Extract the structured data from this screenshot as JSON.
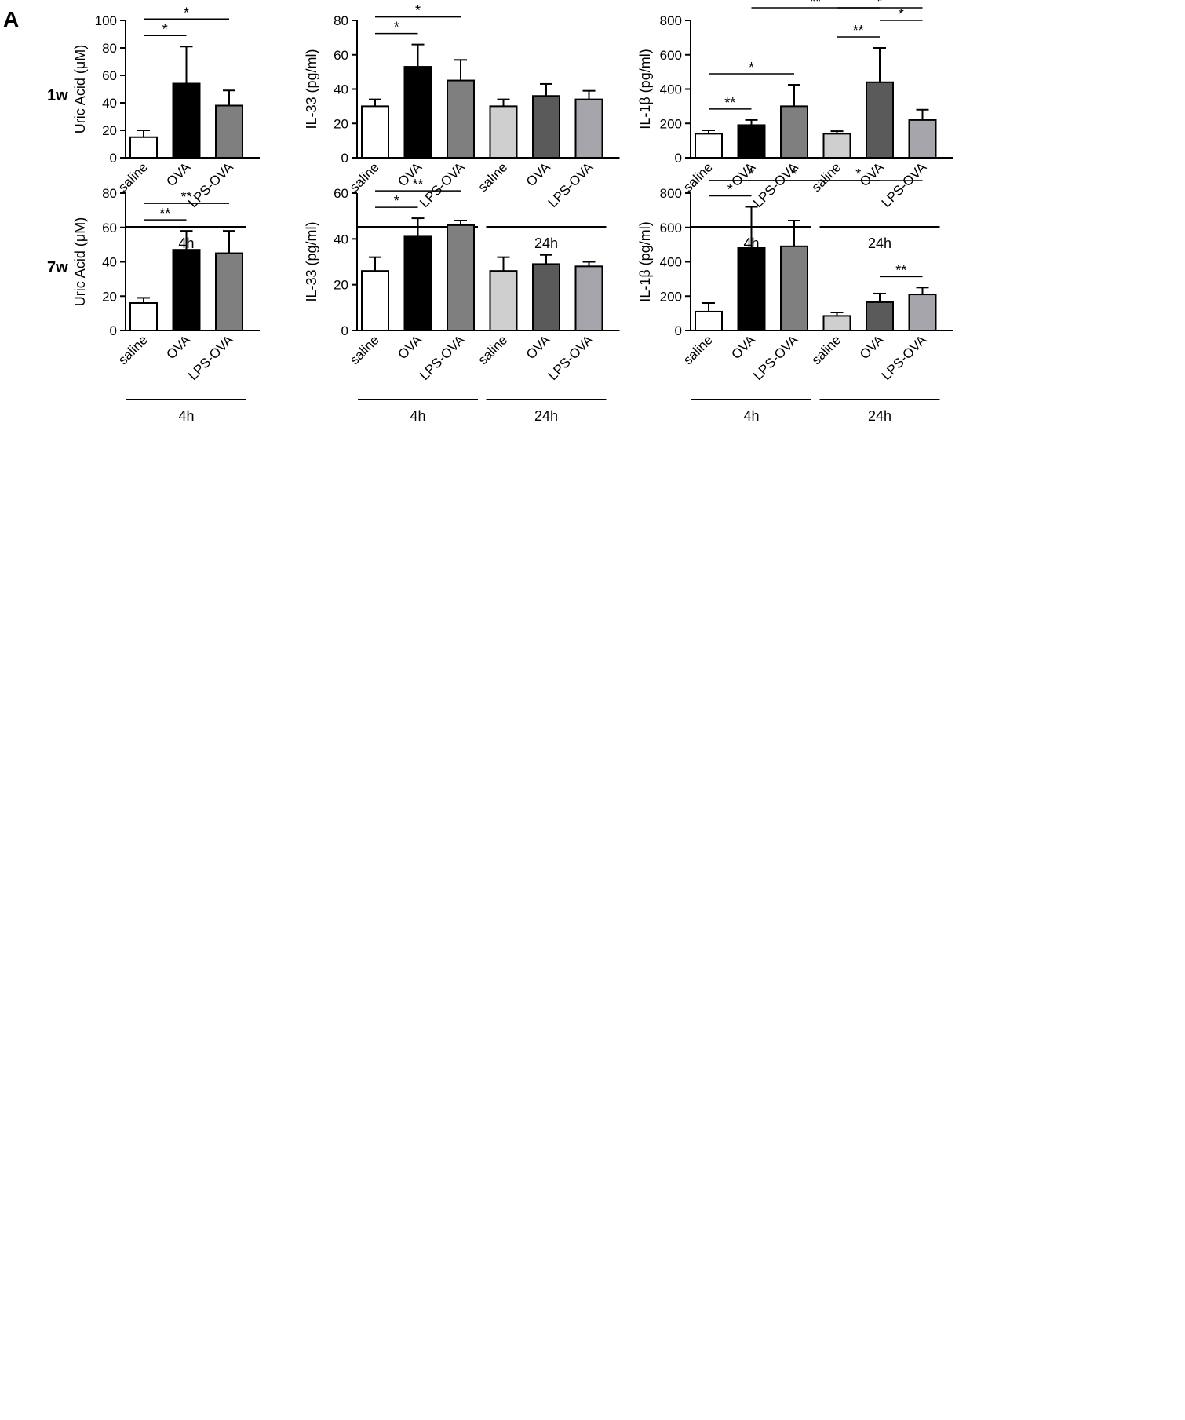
{
  "figure": {
    "panel_letter": "A",
    "row_labels": [
      "1w",
      "7w"
    ]
  },
  "chart_data": [
    {
      "type": "bar",
      "row": 0,
      "col": 0,
      "ylabel": "Uric Acid (μM)",
      "ylim": [
        0,
        100
      ],
      "yticks": [
        0,
        20,
        40,
        60,
        80,
        100
      ],
      "categories": [
        "saline",
        "OVA",
        "LPS-OVA"
      ],
      "groups": [
        {
          "label": "4h",
          "from": 0,
          "to": 2
        }
      ],
      "values": [
        15,
        54,
        38
      ],
      "errors": [
        5,
        27,
        11
      ],
      "colors": [
        "#ffffff",
        "#000000",
        "#7f7f7f"
      ],
      "sig": [
        {
          "a": 0,
          "b": 1,
          "label": "*"
        },
        {
          "a": 0,
          "b": 2,
          "label": "*"
        }
      ]
    },
    {
      "type": "bar",
      "row": 0,
      "col": 1,
      "ylabel": "IL-33 (pg/ml)",
      "ylim": [
        0,
        80
      ],
      "yticks": [
        0,
        20,
        40,
        60,
        80
      ],
      "categories": [
        "saline",
        "OVA",
        "LPS-OVA",
        "saline",
        "OVA",
        "LPS-OVA"
      ],
      "groups": [
        {
          "label": "4h",
          "from": 0,
          "to": 2
        },
        {
          "label": "24h",
          "from": 3,
          "to": 5
        }
      ],
      "values": [
        30,
        53,
        45,
        30,
        36,
        34
      ],
      "errors": [
        4,
        13,
        12,
        4,
        7,
        5
      ],
      "colors": [
        "#ffffff",
        "#000000",
        "#7f7f7f",
        "#cfcfcf",
        "#5a5a5a",
        "#a5a5ab"
      ],
      "sig": [
        {
          "a": 0,
          "b": 1,
          "label": "*"
        },
        {
          "a": 0,
          "b": 2,
          "label": "*"
        }
      ]
    },
    {
      "type": "bar",
      "row": 0,
      "col": 2,
      "ylabel": "IL-1β (pg/ml)",
      "ylim": [
        0,
        800
      ],
      "yticks": [
        0,
        200,
        400,
        600,
        800
      ],
      "categories": [
        "saline",
        "OVA",
        "LPS-OVA",
        "saline",
        "OVA",
        "LPS-OVA"
      ],
      "groups": [
        {
          "label": "4h",
          "from": 0,
          "to": 2
        },
        {
          "label": "24h",
          "from": 3,
          "to": 5
        }
      ],
      "values": [
        140,
        190,
        300,
        140,
        440,
        220
      ],
      "errors": [
        20,
        30,
        125,
        15,
        200,
        60
      ],
      "colors": [
        "#ffffff",
        "#000000",
        "#7f7f7f",
        "#cfcfcf",
        "#5a5a5a",
        "#a5a5ab"
      ],
      "sig": [
        {
          "a": 0,
          "b": 1,
          "label": "**"
        },
        {
          "a": 0,
          "b": 2,
          "label": "*"
        },
        {
          "a": 1,
          "b": 4,
          "label": "**"
        },
        {
          "a": 3,
          "b": 4,
          "label": "**"
        },
        {
          "a": 4,
          "b": 5,
          "label": "*"
        },
        {
          "a": 3,
          "b": 5,
          "label": "*"
        }
      ]
    },
    {
      "type": "bar",
      "row": 1,
      "col": 0,
      "ylabel": "Uric Acid (μM)",
      "ylim": [
        0,
        80
      ],
      "yticks": [
        0,
        20,
        40,
        60,
        80
      ],
      "categories": [
        "saline",
        "OVA",
        "LPS-OVA"
      ],
      "groups": [
        {
          "label": "4h",
          "from": 0,
          "to": 2
        }
      ],
      "values": [
        16,
        47,
        45
      ],
      "errors": [
        3,
        11,
        13
      ],
      "colors": [
        "#ffffff",
        "#000000",
        "#7f7f7f"
      ],
      "sig": [
        {
          "a": 0,
          "b": 1,
          "label": "**"
        },
        {
          "a": 0,
          "b": 2,
          "label": "**"
        }
      ]
    },
    {
      "type": "bar",
      "row": 1,
      "col": 1,
      "ylabel": "IL-33 (pg/ml)",
      "ylim": [
        0,
        60
      ],
      "yticks": [
        0,
        20,
        40,
        60
      ],
      "categories": [
        "saline",
        "OVA",
        "LPS-OVA",
        "saline",
        "OVA",
        "LPS-OVA"
      ],
      "groups": [
        {
          "label": "4h",
          "from": 0,
          "to": 2
        },
        {
          "label": "24h",
          "from": 3,
          "to": 5
        }
      ],
      "values": [
        26,
        41,
        46,
        26,
        29,
        28
      ],
      "errors": [
        6,
        8,
        2,
        6,
        4,
        2
      ],
      "colors": [
        "#ffffff",
        "#000000",
        "#7f7f7f",
        "#cfcfcf",
        "#5a5a5a",
        "#a5a5ab"
      ],
      "sig": [
        {
          "a": 0,
          "b": 1,
          "label": "*"
        },
        {
          "a": 0,
          "b": 2,
          "label": "**"
        }
      ]
    },
    {
      "type": "bar",
      "row": 1,
      "col": 2,
      "ylabel": "IL-1β (pg/ml)",
      "ylim": [
        0,
        800
      ],
      "yticks": [
        0,
        200,
        400,
        600,
        800
      ],
      "categories": [
        "saline",
        "OVA",
        "LPS-OVA",
        "saline",
        "OVA",
        "LPS-OVA"
      ],
      "groups": [
        {
          "label": "4h",
          "from": 0,
          "to": 2
        },
        {
          "label": "24h",
          "from": 3,
          "to": 5
        }
      ],
      "values": [
        110,
        480,
        490,
        85,
        165,
        210
      ],
      "errors": [
        50,
        240,
        150,
        20,
        50,
        40
      ],
      "colors": [
        "#ffffff",
        "#000000",
        "#7f7f7f",
        "#cfcfcf",
        "#5a5a5a",
        "#a5a5ab"
      ],
      "sig": [
        {
          "a": 0,
          "b": 1,
          "label": "*"
        },
        {
          "a": 0,
          "b": 2,
          "label": "*"
        },
        {
          "a": 0,
          "b": 4,
          "label": "*"
        },
        {
          "a": 2,
          "b": 5,
          "label": "*"
        },
        {
          "a": 4,
          "b": 5,
          "label": "**"
        }
      ]
    }
  ]
}
